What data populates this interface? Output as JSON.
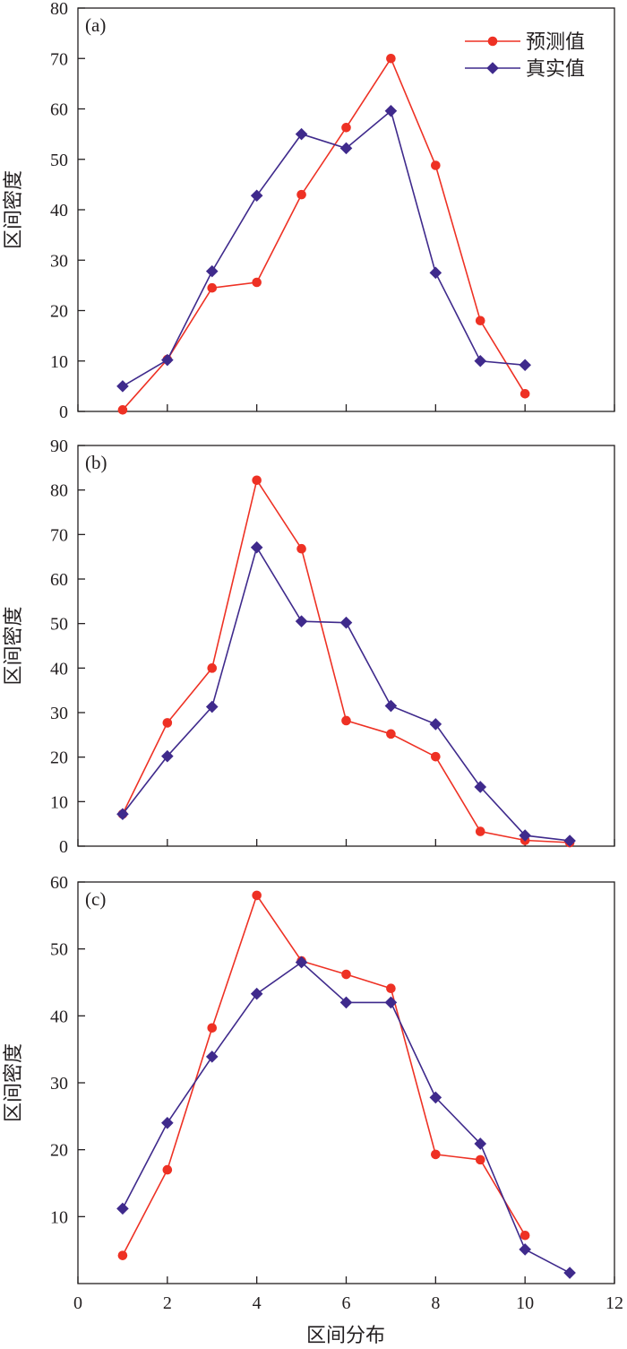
{
  "colors": {
    "predicted": "#ee3124",
    "actual": "#3f2a8c",
    "axis": "#231f20"
  },
  "legend": {
    "predicted_label": "预测值",
    "actual_label": "真实值"
  },
  "x_axis_title": "区间分布",
  "chart_data": [
    {
      "type": "line",
      "panel_label": "(a)",
      "xlabel": "",
      "ylabel": "区间密度",
      "xlim": [
        0,
        12
      ],
      "ylim": [
        0,
        80
      ],
      "yticks": [
        0,
        10,
        20,
        30,
        40,
        50,
        60,
        70,
        80
      ],
      "xticks": [
        0,
        2,
        4,
        6,
        8,
        10,
        12
      ],
      "show_x_tick_labels": false,
      "legend_position": "top-right",
      "series": [
        {
          "name": "预测值",
          "marker": "circle",
          "x": [
            1,
            2,
            3,
            4,
            5,
            6,
            7,
            8,
            9,
            10
          ],
          "y": [
            0.3,
            10.3,
            24.5,
            25.6,
            43,
            56.3,
            70,
            48.8,
            18,
            3.5
          ]
        },
        {
          "name": "真实值",
          "marker": "diamond",
          "x": [
            1,
            2,
            3,
            4,
            5,
            6,
            7,
            8,
            9,
            10
          ],
          "y": [
            5,
            10.2,
            27.8,
            42.8,
            55,
            52.2,
            59.6,
            27.5,
            10,
            9.2
          ]
        }
      ]
    },
    {
      "type": "line",
      "panel_label": "(b)",
      "xlabel": "",
      "ylabel": "区间密度",
      "xlim": [
        0,
        12
      ],
      "ylim": [
        0,
        90
      ],
      "yticks": [
        0,
        10,
        20,
        30,
        40,
        50,
        60,
        70,
        80,
        90
      ],
      "xticks": [
        0,
        2,
        4,
        6,
        8,
        10,
        12
      ],
      "show_x_tick_labels": false,
      "series": [
        {
          "name": "预测值",
          "marker": "circle",
          "x": [
            1,
            2,
            3,
            4,
            5,
            6,
            7,
            8,
            9,
            10,
            11
          ],
          "y": [
            7.2,
            27.7,
            40,
            82.2,
            66.8,
            28.2,
            25.2,
            20.1,
            3.3,
            1.3,
            0.8
          ]
        },
        {
          "name": "真实值",
          "marker": "diamond",
          "x": [
            1,
            2,
            3,
            4,
            5,
            6,
            7,
            8,
            9,
            10,
            11
          ],
          "y": [
            7.2,
            20.2,
            31.3,
            67.1,
            50.5,
            50.2,
            31.5,
            27.4,
            13.3,
            2.4,
            1.2
          ]
        }
      ]
    },
    {
      "type": "line",
      "panel_label": "(c)",
      "xlabel": "区间分布",
      "ylabel": "区间密度",
      "xlim": [
        0,
        12
      ],
      "ylim": [
        0,
        60
      ],
      "yticks": [
        10,
        20,
        30,
        40,
        50,
        60
      ],
      "xticks": [
        0,
        2,
        4,
        6,
        8,
        10,
        12
      ],
      "show_x_tick_labels": true,
      "series": [
        {
          "name": "预测值",
          "marker": "circle",
          "x": [
            1,
            2,
            3,
            4,
            5,
            6,
            7,
            8,
            9,
            10
          ],
          "y": [
            4.2,
            17,
            38.2,
            58,
            48.2,
            46.2,
            44.1,
            19.3,
            18.5,
            7.2
          ]
        },
        {
          "name": "真实值",
          "marker": "diamond",
          "x": [
            1,
            2,
            3,
            4,
            5,
            6,
            7,
            8,
            9,
            10,
            11
          ],
          "y": [
            11.2,
            24,
            33.9,
            43.3,
            48,
            42,
            42,
            27.8,
            20.9,
            5.1,
            1.6
          ]
        }
      ]
    }
  ]
}
